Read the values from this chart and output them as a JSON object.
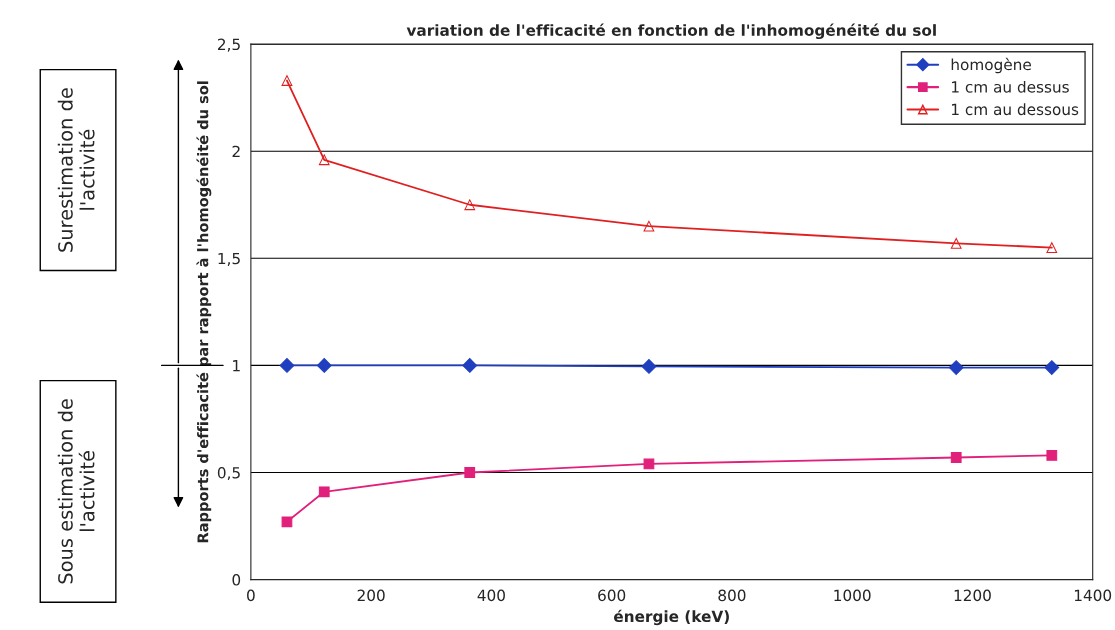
{
  "chart_data": {
    "type": "line",
    "title": "variation de l'efficacité en fonction de l'inhomogénéité du sol",
    "xlabel": "énergie (keV)",
    "ylabel": "Rapports d'efficacité par rapport à l'homogénéité du sol",
    "x": [
      60,
      122,
      364,
      662,
      1173,
      1332
    ],
    "series": [
      {
        "name": "homogène",
        "color": "#1f3fbf",
        "marker": "diamond",
        "values": [
          1,
          1,
          1,
          0.995,
          0.99,
          0.99
        ]
      },
      {
        "name": "1 cm au dessus",
        "color": "#e0207a",
        "marker": "square",
        "values": [
          0.27,
          0.41,
          0.5,
          0.54,
          0.57,
          0.58
        ]
      },
      {
        "name": "1 cm au dessous",
        "color": "#e02020",
        "marker": "triangle",
        "values": [
          2.33,
          1.96,
          1.75,
          1.65,
          1.57,
          1.55
        ]
      }
    ],
    "xlim": [
      0,
      1400
    ],
    "xticks": [
      0,
      200,
      400,
      600,
      800,
      1000,
      1200,
      1400
    ],
    "ylim": [
      0,
      2.5
    ],
    "yticks": [
      0,
      {
        "value": 0.5,
        "label": "0,5"
      },
      1,
      {
        "value": 1.5,
        "label": "1,5"
      },
      2,
      {
        "value": 2.5,
        "label": "2,5"
      }
    ],
    "grid": "y",
    "legend": "top right",
    "annotations": [
      "Surestimation de l'activité",
      "Sous estimation de l'activité"
    ]
  }
}
